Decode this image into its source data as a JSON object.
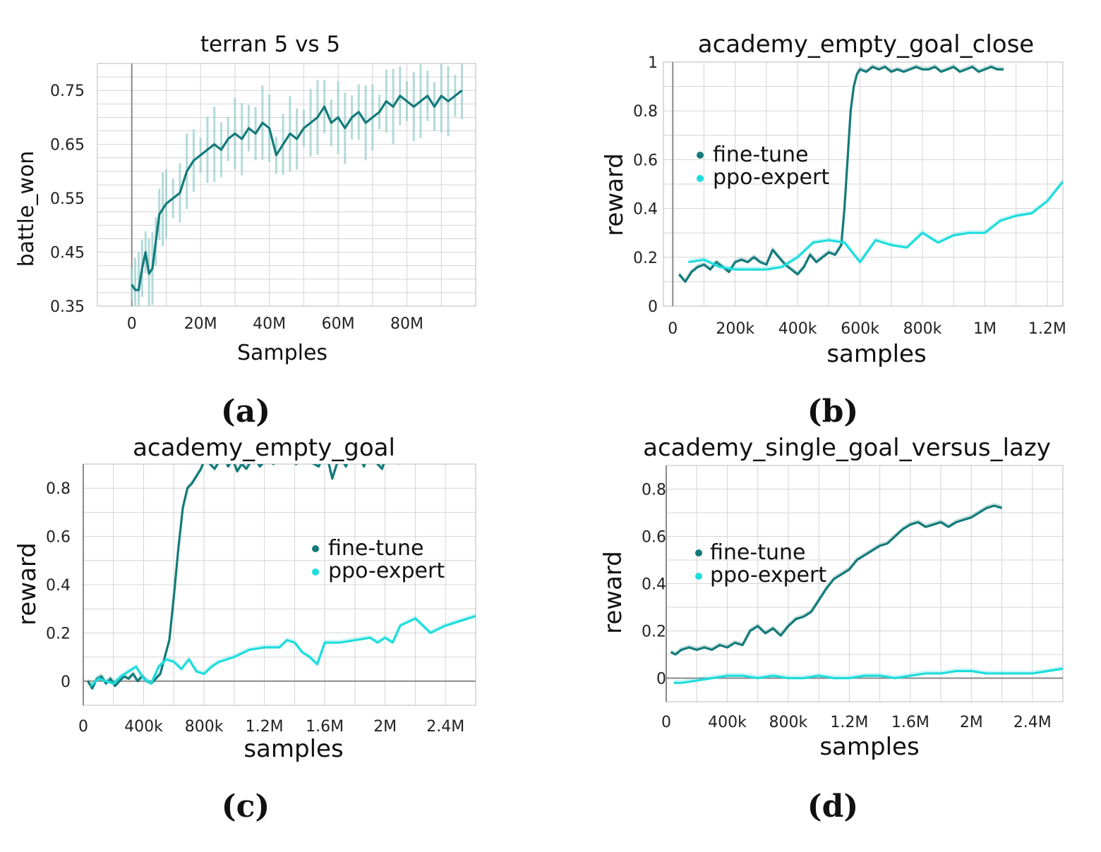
{
  "colors": {
    "fine_tune": "#137a7a",
    "ppo_expert": "#1ddcdc",
    "noise": "#9fd2d0"
  },
  "chart_data": [
    {
      "id": "a",
      "type": "line",
      "title": "terran 5 vs 5",
      "xlabel": "Samples",
      "ylabel": "battle_won",
      "caption": "(a)",
      "xlim": [
        -10,
        100
      ],
      "ylim": [
        0.35,
        0.8
      ],
      "xticks": [
        0,
        20,
        40,
        60,
        80
      ],
      "xtick_labels": [
        "0",
        "20M",
        "40M",
        "60M",
        "80M"
      ],
      "yticks": [
        0.35,
        0.45,
        0.55,
        0.65,
        0.75
      ],
      "ytick_labels": [
        "0.35",
        "0.45",
        "0.55",
        "0.65",
        "0.75"
      ],
      "legend": null,
      "series": [
        {
          "key": "fine_tune",
          "noise_band": true,
          "x": [
            0,
            1,
            2,
            3,
            4,
            5,
            6,
            7,
            8,
            9,
            10,
            12,
            14,
            16,
            18,
            20,
            22,
            24,
            26,
            28,
            30,
            32,
            34,
            36,
            38,
            40,
            42,
            44,
            46,
            48,
            50,
            52,
            54,
            56,
            58,
            60,
            62,
            64,
            66,
            68,
            70,
            72,
            74,
            76,
            78,
            80,
            82,
            84,
            86,
            88,
            90,
            92,
            94,
            96
          ],
          "y": [
            0.39,
            0.38,
            0.38,
            0.42,
            0.45,
            0.41,
            0.42,
            0.47,
            0.52,
            0.53,
            0.54,
            0.55,
            0.56,
            0.6,
            0.62,
            0.63,
            0.64,
            0.65,
            0.64,
            0.66,
            0.67,
            0.66,
            0.68,
            0.67,
            0.69,
            0.68,
            0.63,
            0.65,
            0.67,
            0.66,
            0.68,
            0.69,
            0.7,
            0.72,
            0.69,
            0.7,
            0.68,
            0.7,
            0.71,
            0.69,
            0.7,
            0.71,
            0.73,
            0.72,
            0.74,
            0.73,
            0.72,
            0.73,
            0.74,
            0.72,
            0.74,
            0.73,
            0.74,
            0.75
          ]
        }
      ]
    },
    {
      "id": "b",
      "type": "line",
      "title": "academy_empty_goal_close",
      "xlabel": "samples",
      "ylabel": "reward",
      "caption": "(b)",
      "xlim": [
        -30000,
        1250000
      ],
      "ylim": [
        0,
        1
      ],
      "xticks": [
        0,
        200000,
        400000,
        600000,
        800000,
        1000000,
        1200000
      ],
      "xtick_labels": [
        "0",
        "200k",
        "400k",
        "600k",
        "800k",
        "1M",
        "1.2M"
      ],
      "yticks": [
        0,
        0.2,
        0.4,
        0.6,
        0.8,
        1
      ],
      "ytick_labels": [
        "0",
        "0.2",
        "0.4",
        "0.6",
        "0.8",
        "1"
      ],
      "legend": {
        "placement": "upper-left",
        "labels": [
          "fine-tune",
          "ppo-expert"
        ]
      },
      "series": [
        {
          "key": "fine_tune",
          "x": [
            20000,
            40000,
            60000,
            80000,
            100000,
            120000,
            140000,
            160000,
            180000,
            200000,
            220000,
            240000,
            260000,
            280000,
            300000,
            320000,
            340000,
            360000,
            380000,
            400000,
            420000,
            440000,
            460000,
            480000,
            500000,
            520000,
            540000,
            550000,
            560000,
            570000,
            580000,
            590000,
            600000,
            620000,
            640000,
            660000,
            680000,
            700000,
            720000,
            740000,
            760000,
            780000,
            800000,
            820000,
            840000,
            860000,
            880000,
            900000,
            920000,
            940000,
            960000,
            980000,
            1000000,
            1020000,
            1040000,
            1060000
          ],
          "y": [
            0.13,
            0.1,
            0.14,
            0.16,
            0.17,
            0.15,
            0.18,
            0.16,
            0.14,
            0.18,
            0.19,
            0.18,
            0.2,
            0.18,
            0.17,
            0.23,
            0.2,
            0.17,
            0.15,
            0.13,
            0.16,
            0.21,
            0.18,
            0.2,
            0.22,
            0.21,
            0.25,
            0.4,
            0.6,
            0.8,
            0.9,
            0.95,
            0.97,
            0.96,
            0.98,
            0.97,
            0.98,
            0.96,
            0.97,
            0.96,
            0.97,
            0.98,
            0.97,
            0.97,
            0.98,
            0.96,
            0.97,
            0.98,
            0.96,
            0.97,
            0.98,
            0.96,
            0.97,
            0.98,
            0.97,
            0.97
          ]
        },
        {
          "key": "ppo_expert",
          "x": [
            50000,
            100000,
            150000,
            200000,
            250000,
            300000,
            350000,
            400000,
            450000,
            500000,
            550000,
            600000,
            650000,
            700000,
            750000,
            800000,
            850000,
            900000,
            950000,
            1000000,
            1050000,
            1100000,
            1150000,
            1200000,
            1250000
          ],
          "y": [
            0.18,
            0.19,
            0.16,
            0.15,
            0.15,
            0.15,
            0.16,
            0.2,
            0.26,
            0.27,
            0.26,
            0.18,
            0.27,
            0.25,
            0.24,
            0.3,
            0.26,
            0.29,
            0.3,
            0.3,
            0.35,
            0.37,
            0.38,
            0.43,
            0.51
          ]
        }
      ]
    },
    {
      "id": "c",
      "type": "line",
      "title": "academy_empty_goal",
      "xlabel": "samples",
      "ylabel": "reward",
      "caption": "(c)",
      "xlim": [
        0,
        2600000
      ],
      "ylim": [
        -0.1,
        0.9
      ],
      "xticks": [
        0,
        400000,
        800000,
        1200000,
        1600000,
        2000000,
        2400000
      ],
      "xtick_labels": [
        "0",
        "400k",
        "800k",
        "1.2M",
        "1.6M",
        "2M",
        "2.4M"
      ],
      "yticks": [
        0,
        0.2,
        0.4,
        0.6,
        0.8
      ],
      "ytick_labels": [
        "0",
        "0.2",
        "0.4",
        "0.6",
        "0.8"
      ],
      "legend": {
        "placement": "center-right",
        "labels": [
          "fine-tune",
          "ppo-expert"
        ]
      },
      "series": [
        {
          "key": "fine_tune",
          "x": [
            30000,
            60000,
            90000,
            120000,
            150000,
            180000,
            210000,
            240000,
            270000,
            300000,
            330000,
            360000,
            390000,
            420000,
            450000,
            480000,
            510000,
            540000,
            570000,
            600000,
            630000,
            660000,
            690000,
            720000,
            750000,
            780000,
            810000,
            840000,
            870000,
            900000,
            930000,
            960000,
            990000,
            1020000,
            1050000,
            1080000,
            1110000,
            1140000,
            1170000,
            1200000,
            1230000,
            1260000,
            1290000,
            1320000,
            1350000,
            1380000,
            1410000,
            1440000,
            1470000,
            1500000,
            1530000,
            1560000,
            1590000,
            1620000,
            1650000,
            1680000,
            1710000,
            1740000,
            1770000,
            1800000,
            1830000,
            1860000,
            1890000,
            1920000,
            1950000,
            1980000,
            2010000,
            2040000,
            2070000,
            2100000
          ],
          "y": [
            0.0,
            -0.03,
            0.01,
            0.02,
            -0.01,
            0.01,
            -0.02,
            0.0,
            0.02,
            0.01,
            0.03,
            0.0,
            0.02,
            0.0,
            -0.01,
            0.01,
            0.03,
            0.1,
            0.17,
            0.35,
            0.55,
            0.72,
            0.8,
            0.82,
            0.85,
            0.88,
            0.93,
            0.9,
            0.88,
            0.91,
            0.93,
            0.89,
            0.92,
            0.87,
            0.9,
            0.88,
            0.91,
            0.92,
            0.89,
            0.91,
            0.93,
            0.9,
            0.92,
            0.94,
            0.91,
            0.93,
            0.9,
            0.92,
            0.94,
            0.91,
            0.9,
            0.89,
            0.93,
            0.92,
            0.84,
            0.9,
            0.92,
            0.89,
            0.94,
            0.91,
            0.93,
            0.89,
            0.95,
            0.92,
            0.9,
            0.88,
            0.94,
            0.91,
            0.93,
            0.9
          ]
        },
        {
          "key": "ppo_expert",
          "x": [
            50000,
            100000,
            150000,
            200000,
            250000,
            300000,
            350000,
            400000,
            450000,
            500000,
            550000,
            600000,
            650000,
            700000,
            750000,
            800000,
            850000,
            900000,
            1000000,
            1100000,
            1200000,
            1300000,
            1350000,
            1400000,
            1450000,
            1500000,
            1550000,
            1600000,
            1650000,
            1700000,
            1800000,
            1900000,
            1950000,
            2000000,
            2050000,
            2100000,
            2200000,
            2300000,
            2400000,
            2500000,
            2600000
          ],
          "y": [
            -0.02,
            0.01,
            0.0,
            -0.01,
            0.02,
            0.04,
            0.06,
            0.01,
            -0.01,
            0.06,
            0.09,
            0.08,
            0.05,
            0.09,
            0.04,
            0.03,
            0.06,
            0.08,
            0.1,
            0.13,
            0.14,
            0.14,
            0.17,
            0.16,
            0.12,
            0.1,
            0.07,
            0.16,
            0.16,
            0.16,
            0.17,
            0.18,
            0.16,
            0.18,
            0.16,
            0.23,
            0.26,
            0.2,
            0.23,
            0.25,
            0.27
          ]
        }
      ]
    },
    {
      "id": "d",
      "type": "line",
      "title": "academy_single_goal_versus_lazy",
      "xlabel": "samples",
      "ylabel": "reward",
      "caption": "(d)",
      "xlim": [
        0,
        2600000
      ],
      "ylim": [
        -0.1,
        0.9
      ],
      "xticks": [
        0,
        400000,
        800000,
        1200000,
        1600000,
        2000000,
        2400000
      ],
      "xtick_labels": [
        "0",
        "400k",
        "800k",
        "1.2M",
        "1.6M",
        "2M",
        "2.4M"
      ],
      "yticks": [
        0,
        0.2,
        0.4,
        0.6,
        0.8
      ],
      "ytick_labels": [
        "0",
        "0.2",
        "0.4",
        "0.6",
        "0.8"
      ],
      "legend": {
        "placement": "upper-left",
        "labels": [
          "fine-tune",
          "ppo-expert"
        ]
      },
      "series": [
        {
          "key": "fine_tune",
          "x": [
            30000,
            60000,
            100000,
            150000,
            200000,
            250000,
            300000,
            350000,
            400000,
            450000,
            500000,
            550000,
            600000,
            650000,
            700000,
            750000,
            800000,
            850000,
            900000,
            950000,
            1000000,
            1050000,
            1100000,
            1150000,
            1200000,
            1250000,
            1300000,
            1350000,
            1400000,
            1450000,
            1500000,
            1550000,
            1600000,
            1650000,
            1700000,
            1750000,
            1800000,
            1850000,
            1900000,
            1950000,
            2000000,
            2050000,
            2100000,
            2150000,
            2200000
          ],
          "y": [
            0.11,
            0.1,
            0.12,
            0.13,
            0.12,
            0.13,
            0.12,
            0.14,
            0.13,
            0.15,
            0.14,
            0.2,
            0.22,
            0.19,
            0.21,
            0.18,
            0.22,
            0.25,
            0.26,
            0.28,
            0.33,
            0.38,
            0.42,
            0.44,
            0.46,
            0.5,
            0.52,
            0.54,
            0.56,
            0.57,
            0.6,
            0.63,
            0.65,
            0.66,
            0.64,
            0.65,
            0.66,
            0.64,
            0.66,
            0.67,
            0.68,
            0.7,
            0.72,
            0.73,
            0.72
          ]
        },
        {
          "key": "ppo_expert",
          "x": [
            50000,
            100000,
            200000,
            300000,
            400000,
            500000,
            600000,
            700000,
            800000,
            900000,
            1000000,
            1100000,
            1200000,
            1300000,
            1400000,
            1500000,
            1600000,
            1700000,
            1800000,
            1900000,
            2000000,
            2100000,
            2200000,
            2300000,
            2400000,
            2500000,
            2600000
          ],
          "y": [
            -0.02,
            -0.02,
            -0.01,
            0.0,
            0.01,
            0.01,
            0.0,
            0.01,
            0.0,
            0.0,
            0.01,
            0.0,
            0.0,
            0.01,
            0.01,
            0.0,
            0.01,
            0.02,
            0.02,
            0.03,
            0.03,
            0.02,
            0.02,
            0.02,
            0.02,
            0.03,
            0.04
          ]
        }
      ]
    }
  ]
}
